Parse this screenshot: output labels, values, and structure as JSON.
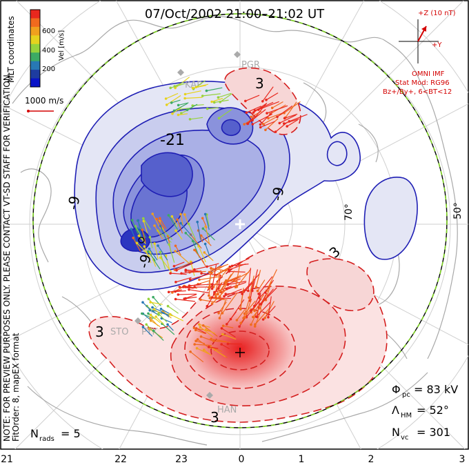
{
  "title": "07/Oct/2002 21:00–21:02 UT",
  "side_note": {
    "line1": "NOTE: FOR PREVIEW PURPOSES ONLY. PLEASE CONTACT VT-SD STAFF FOR VERIFICATION.",
    "line2": "FitOrder: 8, mapEX format",
    "right": "MLT coordinates"
  },
  "colorbar": {
    "label": "Vel [m/s]",
    "ticks": [
      "600",
      "400",
      "200"
    ],
    "colors": [
      "#e8281e",
      "#f06a1e",
      "#f0a01e",
      "#e6d21e",
      "#96d23c",
      "#3caa64",
      "#2878b4",
      "#1e3ca0",
      "#0a14c8"
    ]
  },
  "scale_vector": {
    "label": "1000 m/s"
  },
  "imf": {
    "z_label": "+Z (10 nT)",
    "y_label": "+Y",
    "source": "OMNI IMF",
    "model": "Stat Mod: RG96",
    "condition": "Bz+/By+, 6<BT<12"
  },
  "stations": [
    "PGR",
    "KAP",
    "STO",
    "PYK",
    "HAN"
  ],
  "latitude_labels": [
    "70°",
    "50°"
  ],
  "contours": {
    "negative_labels": [
      "-21",
      "-9",
      "-9",
      "-9"
    ],
    "positive_labels": [
      "3",
      "3",
      "3",
      "3"
    ]
  },
  "stats": {
    "phi_pc": {
      "symbol": "Φ",
      "sub": "pc",
      "value": "= 83 kV"
    },
    "lambda_hm": {
      "symbol": "Λ",
      "sub": "HM",
      "value": "= 52°"
    },
    "n_vc": {
      "symbol": "N",
      "sub": "vc",
      "value": "= 301"
    },
    "n_rads": {
      "symbol": "N",
      "sub": "rads",
      "value": "= 5"
    }
  },
  "mlt_axis": [
    "21",
    "22",
    "23",
    "0",
    "1",
    "2",
    "3"
  ],
  "colors": {
    "negative": "#1e1eb4",
    "positive": "#d41e1e",
    "coast": "#a8a8a8",
    "grid": "#cfcfcf",
    "hm_boundary": "#7ed321"
  }
}
